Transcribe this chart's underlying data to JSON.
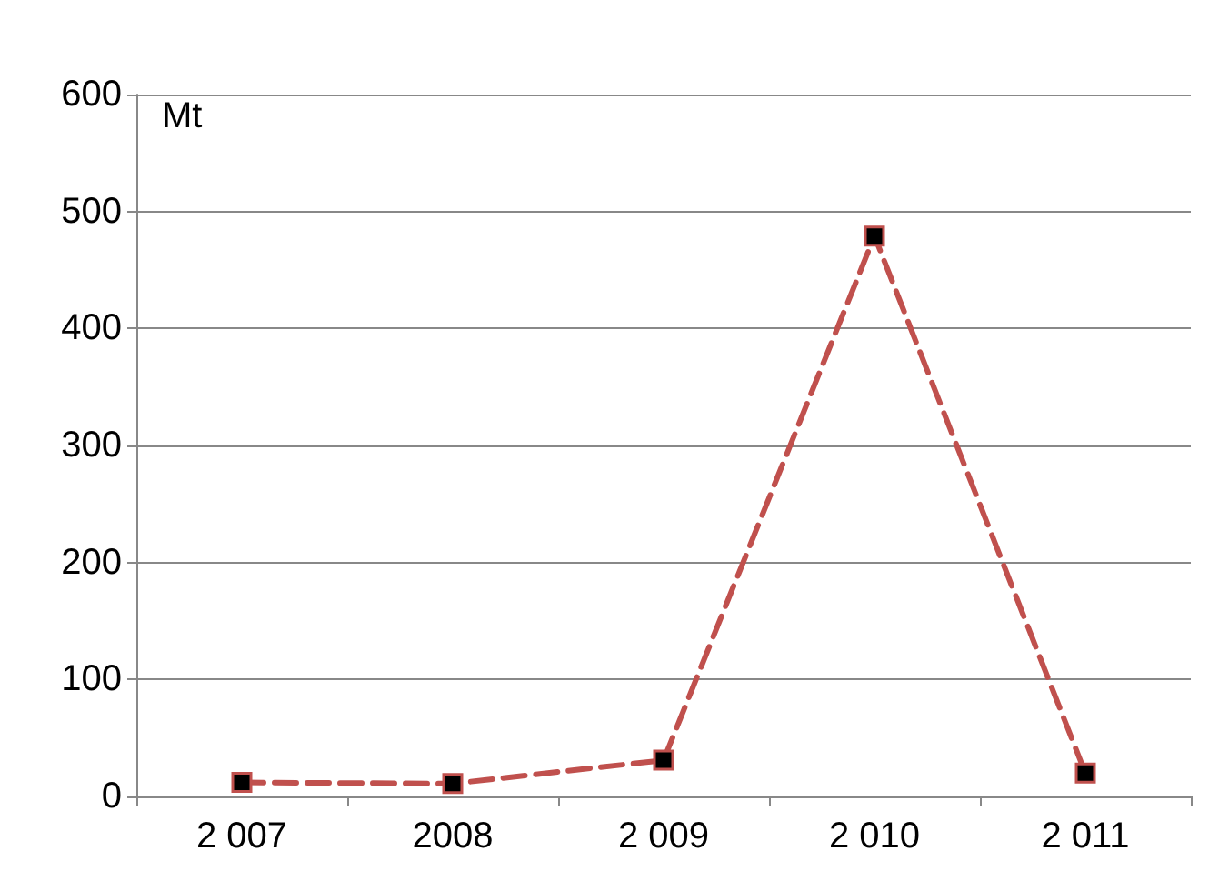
{
  "chart_data": {
    "type": "line",
    "ylabel": "Mt",
    "categories": [
      "2 007",
      "2008",
      "2 009",
      "2 010",
      "2 011"
    ],
    "series": [
      {
        "color": "#c0504d",
        "values": [
          12,
          11,
          31,
          479,
          20
        ]
      }
    ],
    "ylim": [
      0,
      600
    ],
    "yticks": [
      0,
      100,
      200,
      300,
      400,
      500,
      600
    ],
    "grid": "y",
    "marker": "square",
    "line_style": "dashed"
  }
}
